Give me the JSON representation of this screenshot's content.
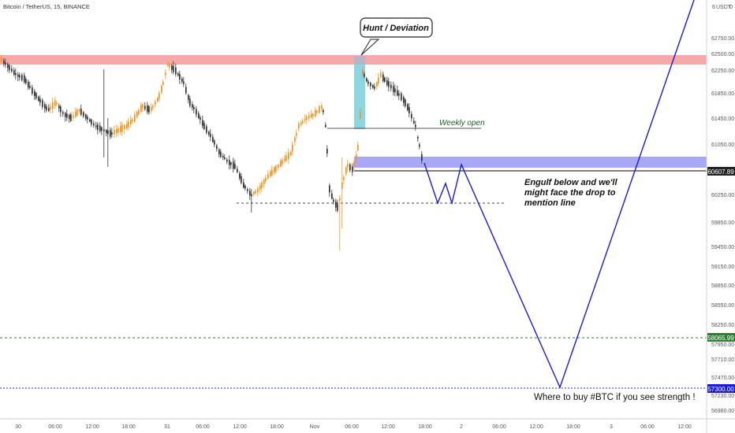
{
  "header": {
    "symbol": "Bitcoin / TetherUS, 15, BINANCE",
    "currency": "USDT"
  },
  "chart_data": {
    "type": "candlestick",
    "title": "Bitcoin / TetherUS, 15, BINANCE",
    "y_axis": {
      "side": "right",
      "ticks": [
        62750,
        62500,
        62250,
        61850,
        61450,
        61050,
        60250,
        59850,
        59450,
        59150,
        58850,
        58550,
        58250,
        57950,
        57710,
        57470,
        57230,
        56980
      ],
      "range": [
        56900,
        63000
      ]
    },
    "x_axis": {
      "ticks": [
        "30",
        "06:00",
        "12:00",
        "18:00",
        "31",
        "06:00",
        "12:00",
        "18:00",
        "Nov",
        "06:00",
        "12:00",
        "18:00",
        "2",
        "06:00",
        "12:00",
        "18:00",
        "3",
        "06:00",
        "12:00"
      ]
    },
    "price_tags": [
      {
        "value": "60607.89",
        "style": "dark"
      },
      {
        "value": "58065.99",
        "style": "green"
      },
      {
        "value": "57300.00",
        "style": "blue"
      }
    ],
    "zones": [
      {
        "name": "resistance",
        "color": "#f7a9a9",
        "low": 62350,
        "high": 62470
      },
      {
        "name": "support",
        "color": "#a8a8f5",
        "low": 60720,
        "high": 60880
      },
      {
        "name": "hunt",
        "color": "#8ad7e2"
      }
    ],
    "horizontal_lines": [
      {
        "name": "weekly-open",
        "value": 61300,
        "style": "solid",
        "color": "#555555"
      },
      {
        "name": "engulf-line",
        "value": 60660,
        "style": "solid",
        "color": "#333333"
      },
      {
        "name": "mention-line",
        "value": 60130,
        "style": "dotted",
        "color": "#444444"
      },
      {
        "name": "green-level",
        "value": 58065.99,
        "style": "dashed",
        "color": "#2e7d32"
      },
      {
        "name": "blue-level",
        "value": 57300.0,
        "style": "dashed",
        "color": "#2233cc"
      }
    ],
    "projection_color": "#1a1adb",
    "candle_colors": {
      "up": "#f7931a",
      "down": "#333333"
    },
    "annotations": {
      "hunt": "Hunt / Deviation",
      "weekly_open": "Weekly open",
      "engulf": [
        "Engulf below and we'll",
        "might face the drop to",
        "mention line"
      ],
      "buy": "Where to buy #BTC if you see strength !"
    }
  }
}
